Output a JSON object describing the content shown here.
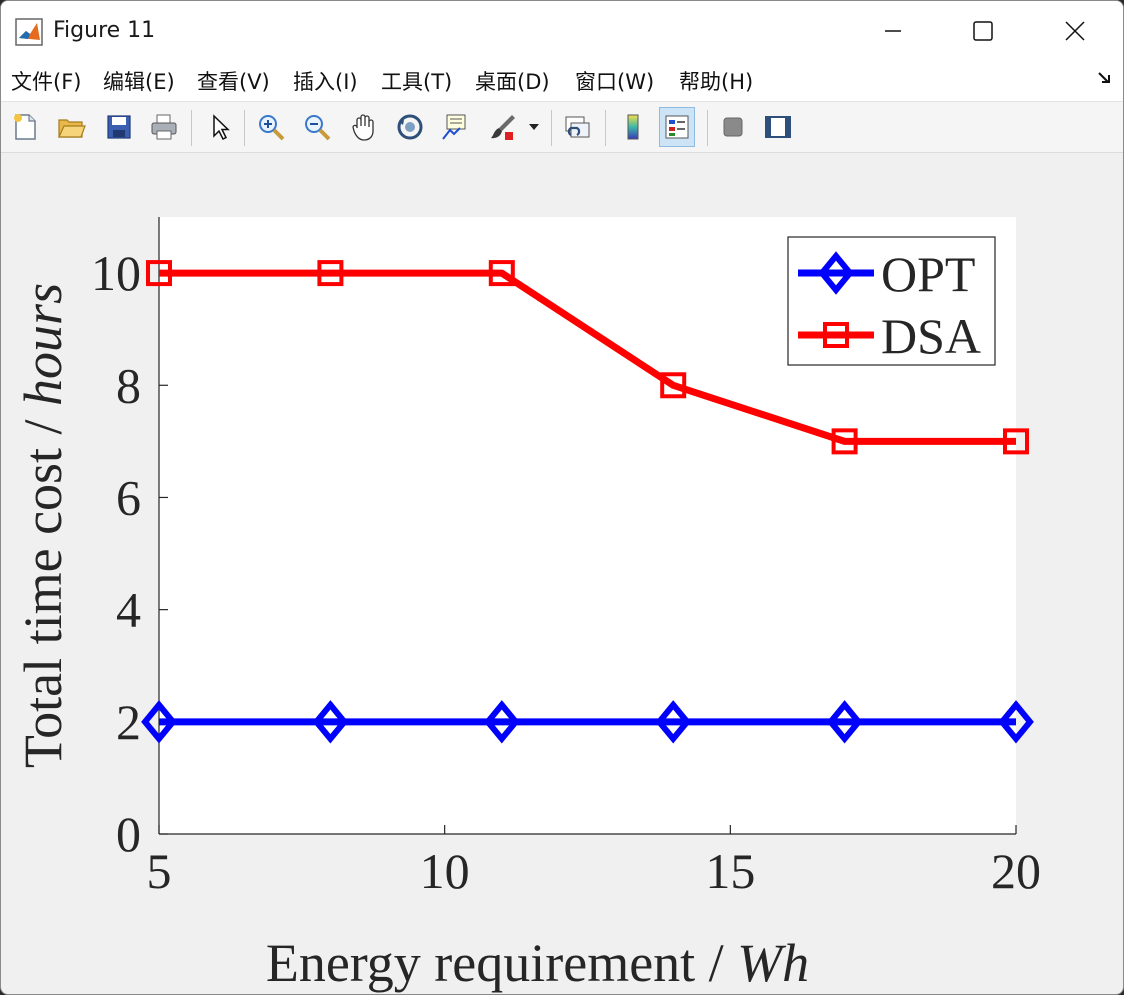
{
  "window": {
    "title": "Figure 11"
  },
  "menu": [
    "文件(F)",
    "编辑(E)",
    "查看(V)",
    "插入(I)",
    "工具(T)",
    "桌面(D)",
    "窗口(W)",
    "帮助(H)"
  ],
  "toolbar": [
    "new-figure-icon",
    "open-file-icon",
    "save-icon",
    "print-icon",
    "pointer-icon",
    "zoom-in-icon",
    "zoom-out-icon",
    "pan-hand-icon",
    "rotate-3d-icon",
    "data-cursor-icon",
    "brush-icon",
    "link-plot-icon",
    "colorbar-icon",
    "legend-icon",
    "hide-plot-tools-icon",
    "show-plot-tools-icon"
  ],
  "chart_data": {
    "type": "line",
    "xlabel": "Energy requirement / ",
    "xlabel_italic": "Wh",
    "ylabel": "Total time cost / ",
    "ylabel_italic": "hours",
    "x": [
      5,
      8,
      11,
      14,
      17,
      20
    ],
    "xlim": [
      5,
      20
    ],
    "ylim": [
      0,
      11
    ],
    "xticks": [
      5,
      10,
      15,
      20
    ],
    "yticks": [
      0,
      2,
      4,
      6,
      8,
      10
    ],
    "legend_position": "top-right",
    "series": [
      {
        "name": "OPT",
        "values": [
          2,
          2,
          2,
          2,
          2,
          2
        ],
        "color": "#0000ff",
        "marker": "diamond"
      },
      {
        "name": "DSA",
        "values": [
          10,
          10,
          10,
          8,
          7,
          7
        ],
        "color": "#ff0000",
        "marker": "square"
      }
    ]
  }
}
